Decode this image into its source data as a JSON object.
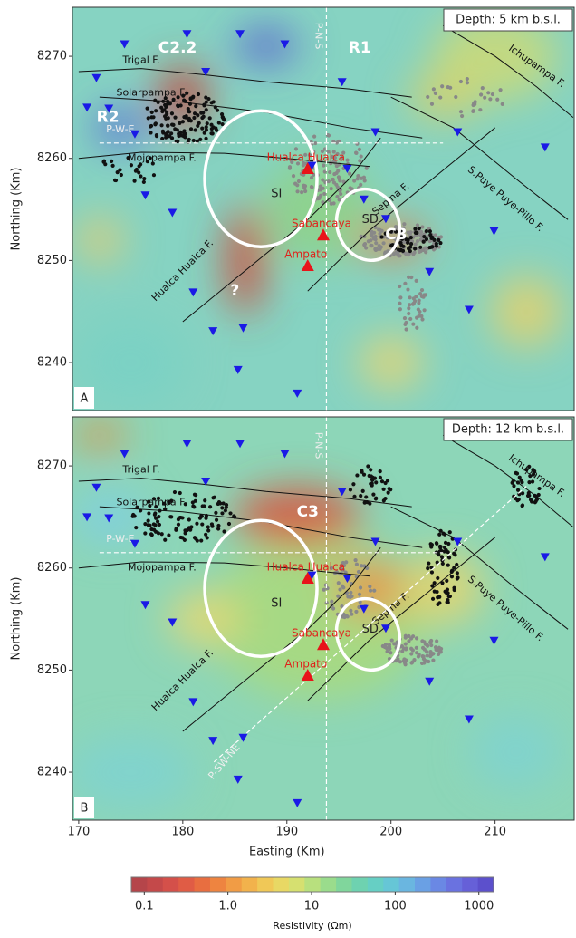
{
  "axes": {
    "x_label": "Easting (Km)",
    "y_label": "Northing (Km)",
    "xlim": [
      169.4,
      217.6
    ],
    "ylim": [
      8235.3,
      8274.8
    ],
    "xticks": [
      170,
      180,
      190,
      200,
      210
    ],
    "yticks": [
      8240,
      8250,
      8260,
      8270
    ]
  },
  "stations": [
    [
      174.4,
      8271.2
    ],
    [
      180.4,
      8272.2
    ],
    [
      185.5,
      8272.2
    ],
    [
      189.8,
      8271.2
    ],
    [
      182.2,
      8268.5
    ],
    [
      171.7,
      8267.9
    ],
    [
      170.8,
      8265.0
    ],
    [
      172.9,
      8264.9
    ],
    [
      175.4,
      8262.4
    ],
    [
      176.4,
      8256.4
    ],
    [
      179.0,
      8254.7
    ],
    [
      181.0,
      8246.9
    ],
    [
      182.9,
      8243.1
    ],
    [
      185.3,
      8239.3
    ],
    [
      185.8,
      8243.4
    ],
    [
      191.0,
      8237.0
    ],
    [
      192.4,
      8259.3
    ],
    [
      195.8,
      8259.0
    ],
    [
      198.5,
      8262.6
    ],
    [
      197.4,
      8256.0
    ],
    [
      199.5,
      8254.1
    ],
    [
      203.7,
      8248.9
    ],
    [
      207.5,
      8245.2
    ],
    [
      206.4,
      8262.6
    ],
    [
      214.8,
      8261.1
    ],
    [
      195.3,
      8267.5
    ],
    [
      209.9,
      8252.9
    ]
  ],
  "volcanoes": [
    {
      "name": "Hualca Hualca",
      "x": 192.0,
      "y": 8259.0
    },
    {
      "name": "Sabancaya",
      "x": 193.5,
      "y": 8252.5
    },
    {
      "name": "Ampato",
      "x": 192.0,
      "y": 8249.5
    }
  ],
  "panels": [
    {
      "letter": "A",
      "depth": "Depth: 5 km b.s.l.",
      "anomalies": [
        "C2.2",
        "R1",
        "R2",
        "C3",
        "?"
      ],
      "zones": [
        "SI",
        "SD"
      ],
      "faults": [
        "Trigal F.",
        "Solarpampa F.",
        "Mojopampa F.",
        "Hualca Hualca F.",
        "Sepina F.",
        "S.Puye Puye-Pillo F.",
        "Ichupampa F."
      ],
      "profiles": [
        "P-N-S",
        "P-W-E"
      ]
    },
    {
      "letter": "B",
      "depth": "Depth: 12 km b.s.l.",
      "anomalies": [
        "C3"
      ],
      "zones": [
        "SI",
        "SD"
      ],
      "faults": [
        "Trigal F.",
        "Solarpampa F.",
        "Mojopampa F.",
        "Hualca Hualca F.",
        "Sepina F.",
        "S.Puye Puye-Pillo F.",
        "Ichupampa F."
      ],
      "profiles": [
        "P-N-S",
        "P-W-E",
        "P-SW-NE"
      ]
    }
  ],
  "colorbar": {
    "title": "Resistivity (Ωm)",
    "lim": [
      0.07,
      1500
    ],
    "log": true,
    "ticks": [
      0.1,
      {
        "value": 1,
        "label": "1.0"
      },
      10,
      100,
      1000
    ]
  }
}
